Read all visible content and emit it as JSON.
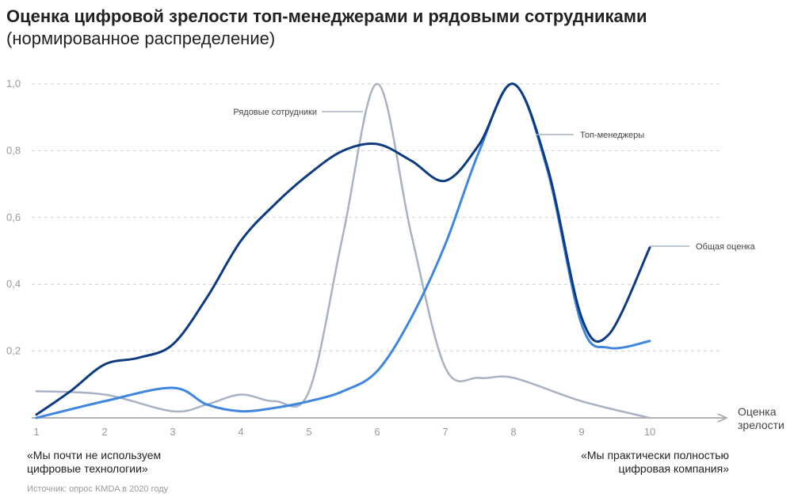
{
  "header": {
    "title": "Оценка цифровой зрелости топ-менеджерами и рядовыми сотрудниками",
    "subtitle": "(нормированное распределение)"
  },
  "chart_data": {
    "type": "line",
    "title": "Оценка цифровой зрелости топ-менеджерами и рядовыми сотрудниками",
    "subtitle": "(нормированное распределение)",
    "x": [
      1,
      2,
      3,
      4,
      5,
      6,
      7,
      8,
      9,
      10
    ],
    "xlabel": "Оценка зрелости",
    "xticks": [
      "1",
      "2",
      "3",
      "4",
      "5",
      "6",
      "7",
      "8",
      "9",
      "10"
    ],
    "yticks": [
      "0,2",
      "0,4",
      "0,6",
      "0,8",
      "1,0"
    ],
    "ylim": [
      0,
      1.0
    ],
    "xlim": [
      1,
      11
    ],
    "grid": "horizontal dashed",
    "series": [
      {
        "name": "Общая оценка",
        "color": "#0d3b82",
        "points": [
          [
            1,
            0.01
          ],
          [
            1.5,
            0.08
          ],
          [
            2,
            0.16
          ],
          [
            2.5,
            0.18
          ],
          [
            3,
            0.22
          ],
          [
            3.5,
            0.36
          ],
          [
            4,
            0.53
          ],
          [
            4.5,
            0.64
          ],
          [
            5,
            0.73
          ],
          [
            5.5,
            0.8
          ],
          [
            6,
            0.82
          ],
          [
            6.5,
            0.77
          ],
          [
            7,
            0.71
          ],
          [
            7.5,
            0.82
          ],
          [
            8,
            1.0
          ],
          [
            8.5,
            0.75
          ],
          [
            9,
            0.3
          ],
          [
            9.4,
            0.25
          ],
          [
            10,
            0.51
          ]
        ]
      },
      {
        "name": "Топ-менеджеры",
        "color": "#3f86e0",
        "points": [
          [
            1,
            0.0
          ],
          [
            2,
            0.05
          ],
          [
            3,
            0.09
          ],
          [
            3.5,
            0.04
          ],
          [
            4,
            0.02
          ],
          [
            4.5,
            0.03
          ],
          [
            5,
            0.05
          ],
          [
            5.5,
            0.08
          ],
          [
            6,
            0.14
          ],
          [
            6.5,
            0.3
          ],
          [
            7,
            0.52
          ],
          [
            7.5,
            0.8
          ],
          [
            8,
            1.0
          ],
          [
            8.5,
            0.74
          ],
          [
            9,
            0.28
          ],
          [
            9.4,
            0.21
          ],
          [
            10,
            0.23
          ]
        ]
      },
      {
        "name": "Рядовые сотрудники",
        "color": "#a8b2c2",
        "points": [
          [
            1,
            0.08
          ],
          [
            2,
            0.07
          ],
          [
            3,
            0.02
          ],
          [
            3.5,
            0.04
          ],
          [
            4,
            0.07
          ],
          [
            4.5,
            0.05
          ],
          [
            5,
            0.08
          ],
          [
            5.5,
            0.55
          ],
          [
            6,
            1.0
          ],
          [
            6.5,
            0.55
          ],
          [
            7,
            0.15
          ],
          [
            7.5,
            0.12
          ],
          [
            8,
            0.12
          ],
          [
            9,
            0.05
          ],
          [
            10,
            0.0
          ]
        ]
      }
    ],
    "annotations": {
      "left": "«Мы почти не используем цифровые технологии»",
      "right": "«Мы практически полностью цифровая компания»"
    }
  },
  "labels": {
    "x_title_line1": "Оценка",
    "x_title_line2": "зрелости",
    "note_left_line1": "«Мы почти не используем",
    "note_left_line2": "цифровые технологии»",
    "note_right_line1": "«Мы практически полностью",
    "note_right_line2": "цифровая компания»",
    "source": "Источник: опрос KMDA в 2020 году"
  }
}
